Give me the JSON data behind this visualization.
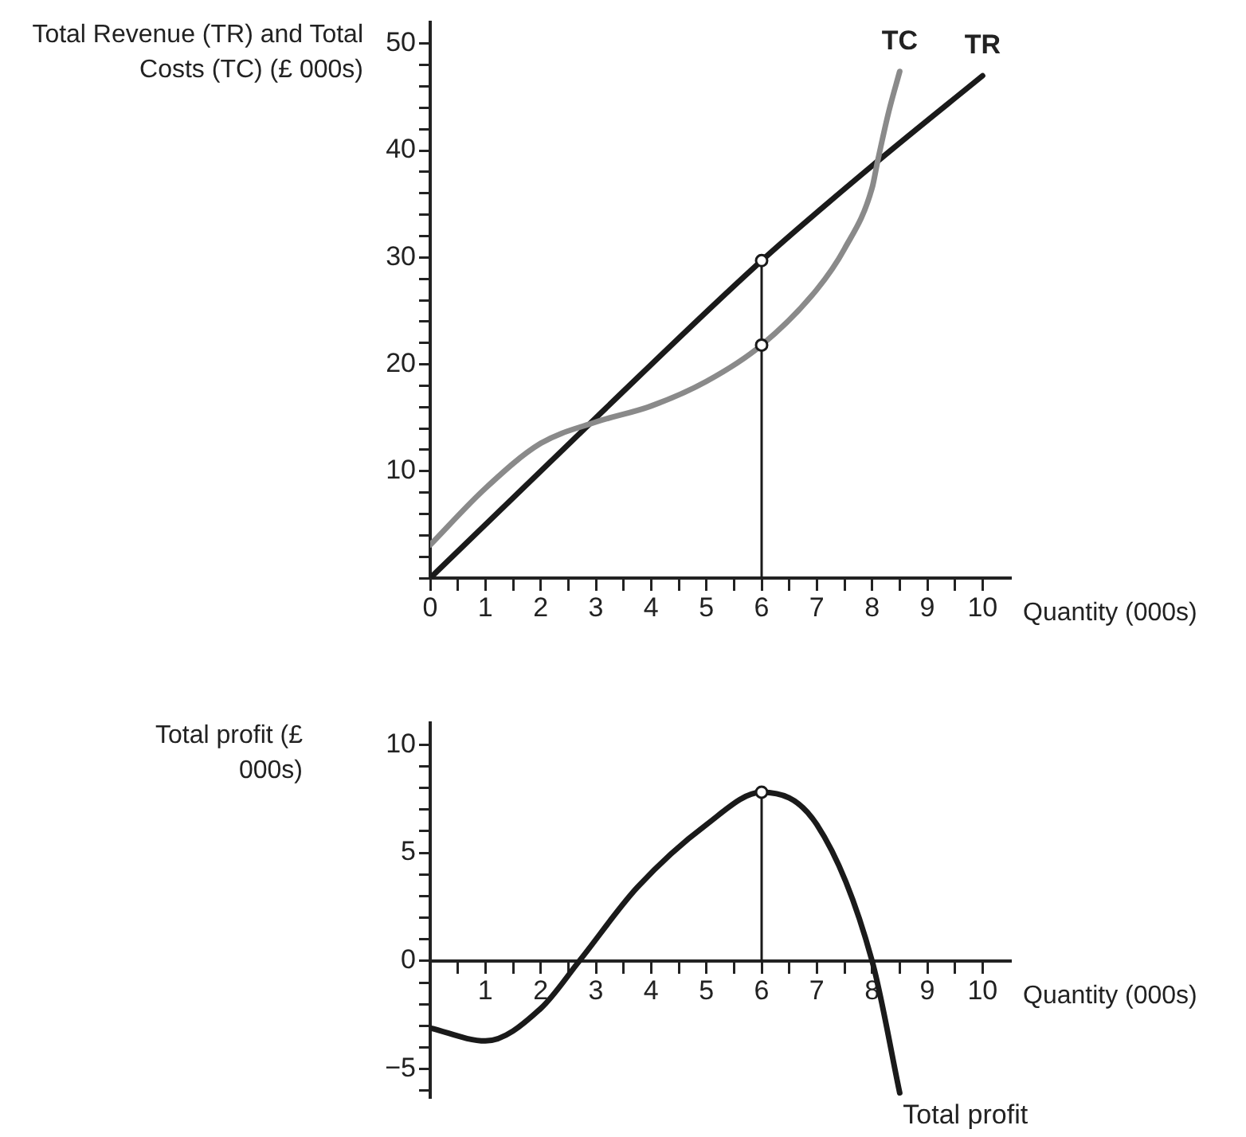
{
  "chart_data": [
    {
      "type": "line",
      "ylabel": "Total Revenue (TR) and Total Costs (TC) (£ 000s)",
      "xlabel": "Quantity (000s)",
      "xlim": [
        0,
        10.5
      ],
      "ylim": [
        0,
        52
      ],
      "xticks": [
        0,
        {
          "value": 0.5,
          "label": null
        },
        1,
        {
          "value": 1.5,
          "label": null
        },
        2,
        {
          "value": 2.5,
          "label": null
        },
        3,
        {
          "value": 3.5,
          "label": null
        },
        4,
        {
          "value": 4.5,
          "label": null
        },
        5,
        {
          "value": 5.5,
          "label": null
        },
        6,
        {
          "value": 6.5,
          "label": null
        },
        7,
        {
          "value": 7.5,
          "label": null
        },
        8,
        {
          "value": 8.5,
          "label": null
        },
        9,
        {
          "value": 9.5,
          "label": null
        },
        10
      ],
      "yticks": [
        {
          "value": 0,
          "label": null
        },
        {
          "value": 2,
          "label": null
        },
        {
          "value": 4,
          "label": null
        },
        {
          "value": 6,
          "label": null
        },
        {
          "value": 8,
          "label": null
        },
        10,
        {
          "value": 12,
          "label": null
        },
        {
          "value": 14,
          "label": null
        },
        {
          "value": 16,
          "label": null
        },
        {
          "value": 18,
          "label": null
        },
        20,
        {
          "value": 22,
          "label": null
        },
        {
          "value": 24,
          "label": null
        },
        {
          "value": 26,
          "label": null
        },
        {
          "value": 28,
          "label": null
        },
        30,
        {
          "value": 32,
          "label": null
        },
        {
          "value": 34,
          "label": null
        },
        {
          "value": 36,
          "label": null
        },
        {
          "value": 38,
          "label": null
        },
        40,
        {
          "value": 42,
          "label": null
        },
        {
          "value": 44,
          "label": null
        },
        {
          "value": 46,
          "label": null
        },
        {
          "value": 48,
          "label": null
        },
        50
      ],
      "grid": false,
      "legend": false,
      "series": [
        {
          "name": "TC",
          "type": "line",
          "color": "#8a8a8a",
          "marker": "none",
          "x": [
            0,
            1,
            2,
            3,
            4,
            5,
            6,
            7,
            7.5,
            8,
            8.1,
            8.3,
            8.5
          ],
          "values": [
            3.1,
            8.4,
            12.6,
            14.6,
            16.1,
            18.4,
            21.8,
            27,
            30.8,
            36.5,
            39,
            43.6,
            47.4
          ]
        },
        {
          "name": "TR",
          "type": "line",
          "color": "#1a1a1a",
          "marker": "none",
          "x": [
            0,
            3,
            6,
            8.1,
            10
          ],
          "values": [
            0,
            15,
            29.7,
            39,
            47
          ]
        },
        {
          "type": "line",
          "color": "#1a1a1a",
          "marker": "none",
          "x": [
            6,
            6
          ],
          "values": [
            0,
            29.7
          ]
        },
        {
          "type": "scatter",
          "color": "#1a1a1a",
          "marker": "circle",
          "x": [
            6,
            6
          ],
          "values": [
            29.7,
            21.8
          ]
        }
      ]
    },
    {
      "type": "line",
      "ylabel": "Total profit (£ 000s)",
      "xlabel": "Quantity (000s)",
      "xlim": [
        0,
        10.5
      ],
      "ylim": [
        -6.3,
        11
      ],
      "xticks": [
        {
          "value": 0.5,
          "label": null
        },
        1,
        {
          "value": 1.5,
          "label": null
        },
        2,
        {
          "value": 2.5,
          "label": null
        },
        3,
        {
          "value": 3.5,
          "label": null
        },
        4,
        {
          "value": 4.5,
          "label": null
        },
        5,
        {
          "value": 5.5,
          "label": null
        },
        6,
        {
          "value": 6.5,
          "label": null
        },
        7,
        {
          "value": 7.5,
          "label": null
        },
        8,
        {
          "value": 8.5,
          "label": null
        },
        9,
        {
          "value": 9.5,
          "label": null
        },
        10
      ],
      "yticks": [
        {
          "value": -6,
          "label": null
        },
        {
          "value": -5,
          "label": "−5"
        },
        {
          "value": -4,
          "label": null
        },
        {
          "value": -3,
          "label": null
        },
        {
          "value": -2,
          "label": null
        },
        {
          "value": -1,
          "label": null
        },
        0,
        {
          "value": 1,
          "label": null
        },
        {
          "value": 2,
          "label": null
        },
        {
          "value": 3,
          "label": null
        },
        {
          "value": 4,
          "label": null
        },
        5,
        {
          "value": 6,
          "label": null
        },
        {
          "value": 7,
          "label": null
        },
        {
          "value": 8,
          "label": null
        },
        {
          "value": 9,
          "label": null
        },
        10
      ],
      "grid": false,
      "legend": false,
      "series": [
        {
          "name": "Total profit",
          "type": "line",
          "color": "#1a1a1a",
          "marker": "none",
          "x": [
            0,
            1,
            2,
            2.7,
            3.75,
            5,
            6,
            7,
            8,
            8.5
          ],
          "values": [
            -3.1,
            -3.7,
            -2.2,
            0,
            3.4,
            6.3,
            7.8,
            6.3,
            0,
            -6.1
          ]
        },
        {
          "type": "line",
          "color": "#1a1a1a",
          "marker": "none",
          "x": [
            6,
            6
          ],
          "values": [
            0,
            7.8
          ]
        },
        {
          "type": "scatter",
          "color": "#1a1a1a",
          "marker": "circle",
          "x": [
            6
          ],
          "values": [
            7.8
          ]
        }
      ]
    }
  ]
}
